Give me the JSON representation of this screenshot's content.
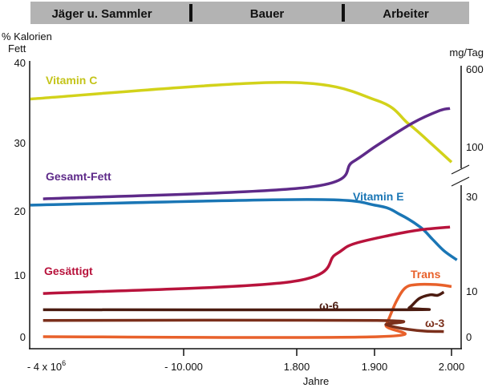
{
  "chart_data": {
    "type": "line",
    "header_periods": [
      "Jäger u. Sammler",
      "Bauer",
      "Arbeiter"
    ],
    "xlabel": "Jahre",
    "x_ticks": [
      {
        "value": -4000000,
        "label_base": "- 4 x 10",
        "label_sup": "6"
      },
      {
        "value": -10000,
        "label": "- 10.000"
      },
      {
        "value": 1800,
        "label": "1.800"
      },
      {
        "value": 1900,
        "label": "1.900"
      },
      {
        "value": 2000,
        "label": "2.000"
      }
    ],
    "x_scale": "piecewise (non-linear) between tick years",
    "left_axis": {
      "label_line1": "% Kalorien",
      "label_line2": "Fett",
      "ylim": [
        0,
        40
      ],
      "ticks": [
        "0",
        "10",
        "20",
        "30",
        "40"
      ]
    },
    "right_axis": {
      "label": "mg/Tag",
      "upper": {
        "scale": "log",
        "ticks": [
          {
            "value": 100,
            "label": "100"
          },
          {
            "value": 600,
            "label": "600"
          }
        ]
      },
      "lower": {
        "scale": "linear",
        "ylim": [
          0,
          30
        ],
        "ticks": [
          {
            "value": 0,
            "label": "0"
          },
          {
            "value": 10,
            "label": "10"
          },
          {
            "value": 30,
            "label": "30"
          }
        ]
      },
      "axis_break": true
    },
    "grid": false,
    "series": [
      {
        "name": "Vitamin C",
        "axis": "right-upper",
        "color": "#d2d21a",
        "points": [
          [
            -4470000,
            300
          ],
          [
            500,
            440
          ],
          [
            1903,
            290
          ],
          [
            1944,
            170
          ],
          [
            1975,
            105
          ],
          [
            2000,
            70
          ]
        ]
      },
      {
        "name": "Gesamt-Fett",
        "axis": "left",
        "color": "#5e2a89",
        "points": [
          [
            -4100000,
            20.1
          ],
          [
            1815,
            21.8
          ],
          [
            1872,
            25.5
          ],
          [
            1903,
            27.9
          ],
          [
            1950,
            31.2
          ],
          [
            1985,
            33.0
          ],
          [
            1998,
            33.3
          ]
        ]
      },
      {
        "name": "Vitamin E",
        "axis": "right-lower",
        "color": "#1a76b5",
        "points": [
          [
            -4470000,
            28.3
          ],
          [
            1815,
            29.5
          ],
          [
            1903,
            28.2
          ],
          [
            1934,
            26.2
          ],
          [
            1960,
            23.5
          ],
          [
            1975,
            21.0
          ],
          [
            1990,
            18.5
          ],
          [
            2007,
            16.5
          ]
        ]
      },
      {
        "name": "Gesättigt",
        "axis": "left",
        "color": "#b8133c",
        "points": [
          [
            -4100000,
            6.3
          ],
          [
            1130,
            8.0
          ],
          [
            1850,
            12.0
          ],
          [
            1872,
            13.5
          ],
          [
            1920,
            14.8
          ],
          [
            1960,
            15.6
          ],
          [
            1998,
            16.0
          ]
        ]
      },
      {
        "name": "Trans",
        "axis": "right-lower",
        "color": "#e8612b",
        "points": [
          [
            -4100000,
            0
          ],
          [
            1905,
            0
          ],
          [
            1915,
            2.5
          ],
          [
            1928,
            7.5
          ],
          [
            1940,
            10.5
          ],
          [
            1955,
            11.2
          ],
          [
            1980,
            11.2
          ],
          [
            2000,
            10.8
          ]
        ]
      },
      {
        "name": "ω-6",
        "axis": "right-lower",
        "color": "#4b1b10",
        "points": [
          [
            -4100000,
            5.8
          ],
          [
            1934,
            5.8
          ],
          [
            1945,
            6.2
          ],
          [
            1958,
            8.2
          ],
          [
            1972,
            9.0
          ],
          [
            1982,
            8.9
          ],
          [
            1990,
            9.6
          ]
        ]
      },
      {
        "name": "ω-3",
        "axis": "right-lower",
        "color": "#7b2f1b",
        "points": [
          [
            -4100000,
            3.5
          ],
          [
            1903,
            3.5
          ],
          [
            1915,
            2.6
          ],
          [
            1935,
            1.8
          ],
          [
            1965,
            1.2
          ],
          [
            1990,
            1.1
          ]
        ]
      }
    ]
  }
}
